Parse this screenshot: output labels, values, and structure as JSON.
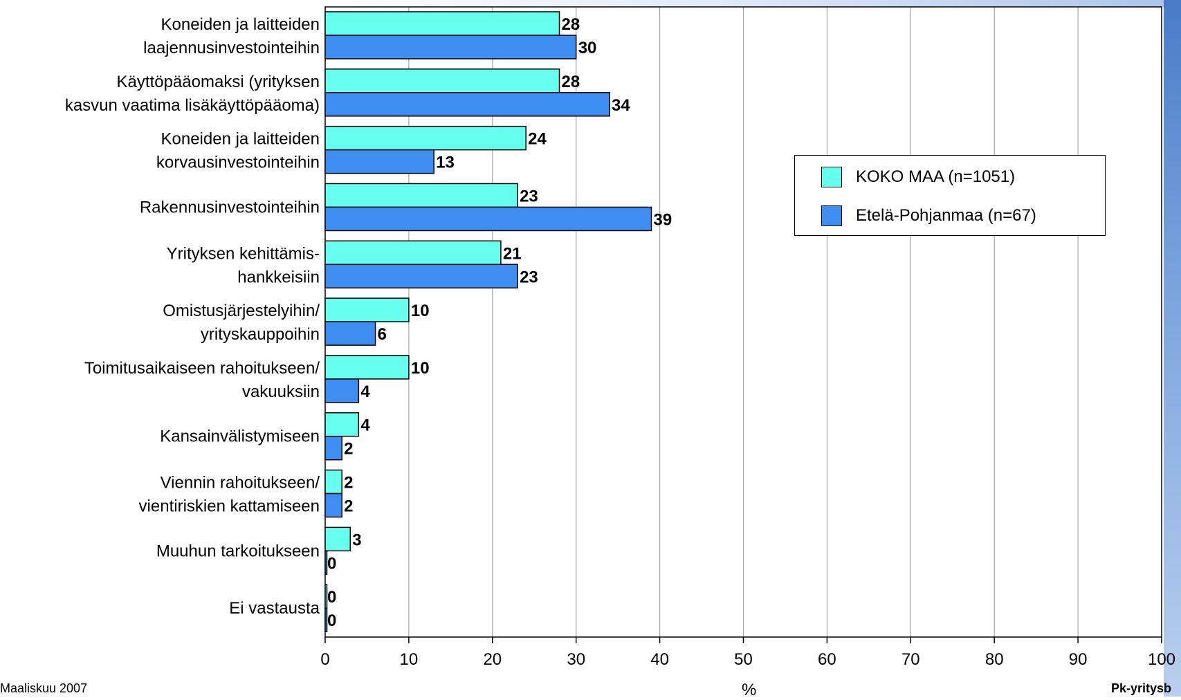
{
  "chart_data": {
    "type": "bar",
    "orientation": "horizontal",
    "categories": [
      [
        "Koneiden ja laitteiden",
        "laajennusinvestointeihin"
      ],
      [
        "Käyttöpääomaksi (yrityksen",
        "kasvun vaatima lisäkäyttöpääoma)"
      ],
      [
        "Koneiden ja laitteiden",
        "korvausinvestointeihin"
      ],
      [
        "Rakennusinvestointeihin"
      ],
      [
        "Yrityksen kehittämis-",
        "hankkeisiin"
      ],
      [
        "Omistusjärjestelyihin/",
        "yrityskauppoihin"
      ],
      [
        "Toimitusaikaiseen rahoitukseen/",
        "vakuuksiin"
      ],
      [
        "Kansainvälistymiseen"
      ],
      [
        "Viennin rahoitukseen/",
        "vientiriskien kattamiseen"
      ],
      [
        "Muuhun tarkoitukseen"
      ],
      [
        "Ei vastausta"
      ]
    ],
    "series": [
      {
        "name": "KOKO MAA (n=1051)",
        "values": [
          28,
          28,
          24,
          23,
          21,
          10,
          10,
          4,
          2,
          3,
          0
        ],
        "color": "#66ffee"
      },
      {
        "name": "Etelä-Pohjanmaa (n=67)",
        "values": [
          30,
          34,
          13,
          39,
          23,
          6,
          4,
          2,
          2,
          0,
          0
        ],
        "color": "#3d8ef0"
      }
    ],
    "xlim": [
      0,
      100
    ],
    "xticks": [
      0,
      10,
      20,
      30,
      40,
      50,
      60,
      70,
      80,
      90,
      100
    ],
    "xlabel": "%",
    "grid": true,
    "legend_position": "right"
  },
  "footer": {
    "left": "Maaliskuu 2007",
    "right": "Pk-yritysb"
  }
}
